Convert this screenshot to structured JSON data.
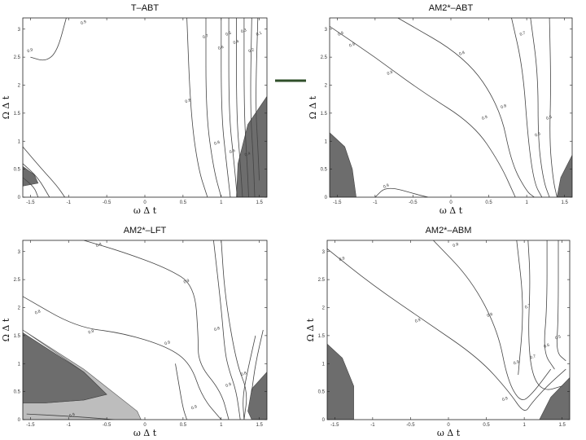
{
  "accent": {
    "dash": "#2f4f2a",
    "dark": "#6d6d6d",
    "light": "#bdbdbd",
    "line": "#444444"
  },
  "chart_data": [
    {
      "type": "contour",
      "title": "T–ABT",
      "xlabel": "ω Δ t",
      "ylabel": "Ω Δ t",
      "xlim": [
        -1.6,
        1.6
      ],
      "ylim": [
        0,
        3.2
      ],
      "xticks": [
        "-1.5",
        "-1",
        "-0.5",
        "0",
        "0.5",
        "1",
        "1.5"
      ],
      "yticks": [
        "0",
        "0.5",
        "1",
        "1.5",
        "2",
        "2.5",
        "3"
      ],
      "contour_labels": [
        "0.9",
        "0.9",
        "0.8",
        "0.7",
        "0.6",
        "0.5",
        "0.4",
        "0.3",
        "0.2",
        "0.1",
        "0.8",
        "0.6",
        "0.4"
      ],
      "contours": [
        {
          "level": "0.9",
          "points": [
            [
              -1.5,
              2.5
            ],
            [
              -1.3,
              2.42
            ],
            [
              -1.15,
              2.6
            ],
            [
              -1.03,
              3.2
            ]
          ]
        },
        {
          "level": "0.9",
          "points": [
            [
              0.55,
              3.2
            ],
            [
              0.6,
              1.5
            ],
            [
              0.7,
              0.5
            ],
            [
              0.82,
              0
            ]
          ]
        },
        {
          "level": "0.8",
          "points": [
            [
              0.8,
              3.2
            ],
            [
              0.8,
              1.5
            ],
            [
              0.9,
              0.5
            ],
            [
              1.0,
              0
            ]
          ]
        },
        {
          "level": "0.7",
          "points": [
            [
              1.0,
              3.2
            ],
            [
              1.0,
              1.5
            ],
            [
              1.07,
              0.6
            ],
            [
              1.12,
              0
            ]
          ]
        },
        {
          "level": "0.6",
          "points": [
            [
              1.1,
              3.2
            ],
            [
              1.1,
              1.5
            ],
            [
              1.17,
              0.6
            ],
            [
              1.21,
              0
            ]
          ]
        },
        {
          "level": "0.5",
          "points": [
            [
              1.2,
              3.2
            ],
            [
              1.2,
              1.5
            ],
            [
              1.25,
              0.6
            ],
            [
              1.28,
              0
            ]
          ]
        },
        {
          "level": "0.4",
          "points": [
            [
              1.3,
              3.2
            ],
            [
              1.3,
              1.5
            ],
            [
              1.34,
              0.6
            ],
            [
              1.36,
              0
            ]
          ]
        },
        {
          "level": "0.3",
          "points": [
            [
              1.4,
              3.2
            ],
            [
              1.38,
              1.6
            ],
            [
              1.42,
              0.7
            ],
            [
              1.44,
              0
            ]
          ]
        },
        {
          "level": "0.2",
          "points": [
            [
              1.48,
              3.2
            ],
            [
              1.45,
              1.7
            ],
            [
              1.48,
              0.9
            ],
            [
              1.5,
              0.3
            ]
          ]
        },
        {
          "level": "0.1",
          "points": [
            [
              -1.6,
              0.9
            ],
            [
              -1.35,
              0.5
            ],
            [
              -1.15,
              0.2
            ],
            [
              -1.05,
              0
            ]
          ]
        },
        {
          "level": "0.1",
          "points": [
            [
              -1.6,
              0.6
            ],
            [
              -1.4,
              0.35
            ],
            [
              -1.25,
              0
            ]
          ]
        },
        {
          "level": "0.1",
          "points": [
            [
              -1.6,
              0.35
            ],
            [
              -1.45,
              0.18
            ],
            [
              -1.4,
              0
            ]
          ]
        }
      ],
      "shaded_dark": [
        [
          [
            1.6,
            1.8
          ],
          [
            1.35,
            1.3
          ],
          [
            1.22,
            0.6
          ],
          [
            1.2,
            0
          ],
          [
            1.6,
            0
          ]
        ],
        [
          [
            -1.6,
            0.55
          ],
          [
            -1.45,
            0.4
          ],
          [
            -1.4,
            0.25
          ],
          [
            -1.6,
            0.2
          ]
        ]
      ],
      "shaded_light": []
    },
    {
      "type": "contour",
      "title": "AM2*–ABT",
      "xlabel": "ω Δ t",
      "ylabel": "Ω Δ t",
      "xlim": [
        -1.6,
        1.6
      ],
      "ylim": [
        0,
        3.2
      ],
      "xticks": [
        "-1.5",
        "-1",
        "-0.5",
        "0",
        "0.5",
        "1",
        "1.5"
      ],
      "yticks": [
        "0",
        "0.5",
        "1",
        "1.5",
        "2",
        "2.5",
        "3"
      ],
      "contour_labels": [
        "0.9",
        "0.9",
        "0.8",
        "0.9",
        "0.7",
        "0.6",
        "0.8",
        "0.9",
        "0.5",
        "0.9"
      ],
      "contours": [
        {
          "level": "0.9",
          "points": [
            [
              -1.6,
              3.05
            ],
            [
              -1.0,
              2.5
            ],
            [
              -0.4,
              1.9
            ],
            [
              0.3,
              1.3
            ],
            [
              0.65,
              0.6
            ],
            [
              0.85,
              0
            ]
          ]
        },
        {
          "level": "0.8",
          "points": [
            [
              -0.7,
              3.2
            ],
            [
              0.2,
              2.5
            ],
            [
              0.65,
              1.6
            ],
            [
              0.8,
              0.6
            ],
            [
              1.0,
              0.1
            ],
            [
              1.1,
              0
            ]
          ]
        },
        {
          "level": "0.7",
          "points": [
            [
              0.8,
              3.2
            ],
            [
              0.95,
              2.3
            ],
            [
              1.02,
              1.0
            ],
            [
              1.1,
              0.25
            ],
            [
              1.2,
              0
            ]
          ]
        },
        {
          "level": "0.6",
          "points": [
            [
              1.05,
              3.2
            ],
            [
              1.15,
              2.2
            ],
            [
              1.15,
              1.0
            ],
            [
              1.22,
              0.3
            ],
            [
              1.3,
              0
            ]
          ]
        },
        {
          "level": "0.5",
          "points": [
            [
              1.3,
              3.2
            ],
            [
              1.32,
              2.0
            ],
            [
              1.3,
              1.0
            ],
            [
              1.35,
              0.3
            ],
            [
              1.4,
              0
            ]
          ]
        },
        {
          "level": "0.9",
          "points": [
            [
              -1.0,
              0
            ],
            [
              -0.85,
              0.2
            ],
            [
              -0.45,
              0.05
            ],
            [
              -0.3,
              0
            ]
          ]
        }
      ],
      "shaded_dark": [
        [
          [
            -1.6,
            1.15
          ],
          [
            -1.4,
            0.9
          ],
          [
            -1.3,
            0.5
          ],
          [
            -1.25,
            0
          ],
          [
            -1.6,
            0
          ]
        ],
        [
          [
            1.6,
            0.75
          ],
          [
            1.45,
            0.35
          ],
          [
            1.4,
            0
          ],
          [
            1.6,
            0
          ]
        ]
      ],
      "shaded_light": []
    },
    {
      "type": "contour",
      "title": "AM2*–LFT",
      "xlabel": "ω Δ t",
      "ylabel": "Ω Δ t",
      "xlim": [
        -1.6,
        1.6
      ],
      "ylim": [
        0,
        3.2
      ],
      "xticks": [
        "-1.5",
        "-1",
        "-0.5",
        "0",
        "0.5",
        "1",
        "1.5"
      ],
      "yticks": [
        "0",
        "0.5",
        "1",
        "1.5",
        "2",
        "2.5",
        "3"
      ],
      "contour_labels": [
        "0.8",
        "0.8",
        "0.9",
        "0.9",
        "0.9",
        "0.9",
        "0.8",
        "0.9",
        "0.8",
        "0.9"
      ],
      "contours": [
        {
          "level": "0.8",
          "points": [
            [
              -0.8,
              3.2
            ],
            [
              -0.3,
              3.0
            ],
            [
              0.3,
              2.7
            ],
            [
              0.65,
              2.4
            ],
            [
              0.7,
              1.5
            ],
            [
              0.7,
              1.0
            ],
            [
              1.0,
              0.5
            ],
            [
              1.1,
              0
            ]
          ]
        },
        {
          "level": "0.9",
          "points": [
            [
              -1.6,
              2.2
            ],
            [
              -0.9,
              1.65
            ],
            [
              -0.3,
              1.55
            ],
            [
              0.3,
              1.3
            ],
            [
              0.6,
              1.0
            ],
            [
              0.75,
              0.4
            ],
            [
              1.0,
              0
            ]
          ]
        },
        {
          "level": "0.9",
          "points": [
            [
              0.9,
              3.2
            ],
            [
              1.0,
              2.0
            ],
            [
              1.05,
              1.2
            ],
            [
              1.1,
              0.9
            ],
            [
              1.2,
              0.5
            ],
            [
              1.25,
              0
            ]
          ]
        },
        {
          "level": "0.8",
          "points": [
            [
              1.0,
              3.2
            ],
            [
              1.05,
              2.2
            ],
            [
              1.2,
              1.0
            ],
            [
              1.35,
              0.5
            ],
            [
              1.3,
              0
            ]
          ]
        },
        {
          "level": "0.9",
          "points": [
            [
              0.4,
              1.0
            ],
            [
              0.45,
              0.6
            ],
            [
              0.5,
              0.2
            ],
            [
              0.55,
              0
            ]
          ]
        },
        {
          "level": "0.9",
          "points": [
            [
              -1.55,
              0.1
            ],
            [
              -0.85,
              0.05
            ],
            [
              -0.4,
              0.0
            ]
          ]
        },
        {
          "level": "0.9",
          "points": [
            [
              1.45,
              1.5
            ],
            [
              1.35,
              0.9
            ],
            [
              1.28,
              0.4
            ],
            [
              1.3,
              0
            ]
          ]
        },
        {
          "level": "0.9",
          "points": [
            [
              1.55,
              1.6
            ],
            [
              1.45,
              1.0
            ],
            [
              1.4,
              0.5
            ]
          ]
        }
      ],
      "shaded_dark": [
        [
          [
            -1.6,
            1.55
          ],
          [
            -0.8,
            0.85
          ],
          [
            -0.5,
            0.45
          ],
          [
            -0.8,
            0.35
          ],
          [
            -1.3,
            0.3
          ],
          [
            -1.6,
            0.3
          ]
        ],
        [
          [
            1.6,
            0.85
          ],
          [
            1.4,
            0.55
          ],
          [
            1.35,
            0.15
          ],
          [
            1.4,
            0
          ],
          [
            1.6,
            0
          ]
        ]
      ],
      "shaded_light": [
        [
          [
            -1.6,
            1.6
          ],
          [
            -0.8,
            0.9
          ],
          [
            -0.1,
            0.15
          ],
          [
            -0.05,
            0
          ],
          [
            -1.6,
            0
          ],
          [
            -1.6,
            0.3
          ],
          [
            -1.3,
            0.3
          ],
          [
            -0.8,
            0.35
          ],
          [
            -0.5,
            0.45
          ],
          [
            -0.8,
            0.85
          ]
        ]
      ]
    },
    {
      "type": "contour",
      "title": "AM2*–ABM",
      "xlabel": "ω Δ t",
      "ylabel": "Ω Δ t",
      "xlim": [
        -1.6,
        1.6
      ],
      "ylim": [
        0,
        3.2
      ],
      "xticks": [
        "-1.5",
        "-1",
        "-0.5",
        "0",
        "0.5",
        "1",
        "1.5"
      ],
      "yticks": [
        "0",
        "0.5",
        "1",
        "1.5",
        "2",
        "2.5",
        "3"
      ],
      "contour_labels": [
        "0.9",
        "0.9",
        "0.8",
        "0.8",
        "0.9",
        "0.7",
        "0.7",
        "0.6",
        "0.5",
        "0.9"
      ],
      "contours": [
        {
          "level": "0.9",
          "points": [
            [
              -1.6,
              3.05
            ],
            [
              -1.0,
              2.4
            ],
            [
              -0.3,
              1.75
            ],
            [
              0.4,
              1.1
            ],
            [
              0.8,
              0.5
            ],
            [
              1.0,
              0.1
            ],
            [
              1.1,
              0.3
            ],
            [
              1.3,
              0.6
            ],
            [
              1.55,
              0.9
            ]
          ]
        },
        {
          "level": "0.8",
          "points": [
            [
              -0.2,
              3.2
            ],
            [
              0.3,
              2.5
            ],
            [
              0.65,
              1.6
            ],
            [
              0.78,
              0.7
            ],
            [
              0.95,
              0.3
            ],
            [
              1.1,
              0.45
            ],
            [
              1.35,
              0.9
            ]
          ]
        },
        {
          "level": "0.7",
          "points": [
            [
              1.05,
              3.2
            ],
            [
              1.08,
              2.5
            ],
            [
              1.05,
              1.5
            ],
            [
              1.1,
              0.8
            ],
            [
              1.25,
              0.5
            ],
            [
              1.5,
              0.6
            ]
          ]
        },
        {
          "level": "0.6",
          "points": [
            [
              1.3,
              3.2
            ],
            [
              1.3,
              2.0
            ],
            [
              1.25,
              1.2
            ],
            [
              1.4,
              0.9
            ]
          ]
        },
        {
          "level": "0.5",
          "points": [
            [
              1.45,
              3.2
            ],
            [
              1.45,
              1.8
            ],
            [
              1.42,
              1.2
            ],
            [
              1.55,
              1.05
            ]
          ]
        },
        {
          "level": "0.9",
          "points": [
            [
              0.9,
              3.2
            ],
            [
              1.0,
              2.0
            ],
            [
              0.92,
              0.8
            ]
          ]
        }
      ],
      "shaded_dark": [
        [
          [
            -1.6,
            1.35
          ],
          [
            -1.4,
            1.1
          ],
          [
            -1.25,
            0.6
          ],
          [
            -1.25,
            0
          ],
          [
            -1.6,
            0
          ]
        ],
        [
          [
            1.6,
            0.75
          ],
          [
            1.35,
            0.4
          ],
          [
            1.2,
            0
          ],
          [
            1.6,
            0
          ]
        ]
      ],
      "shaded_light": []
    }
  ]
}
